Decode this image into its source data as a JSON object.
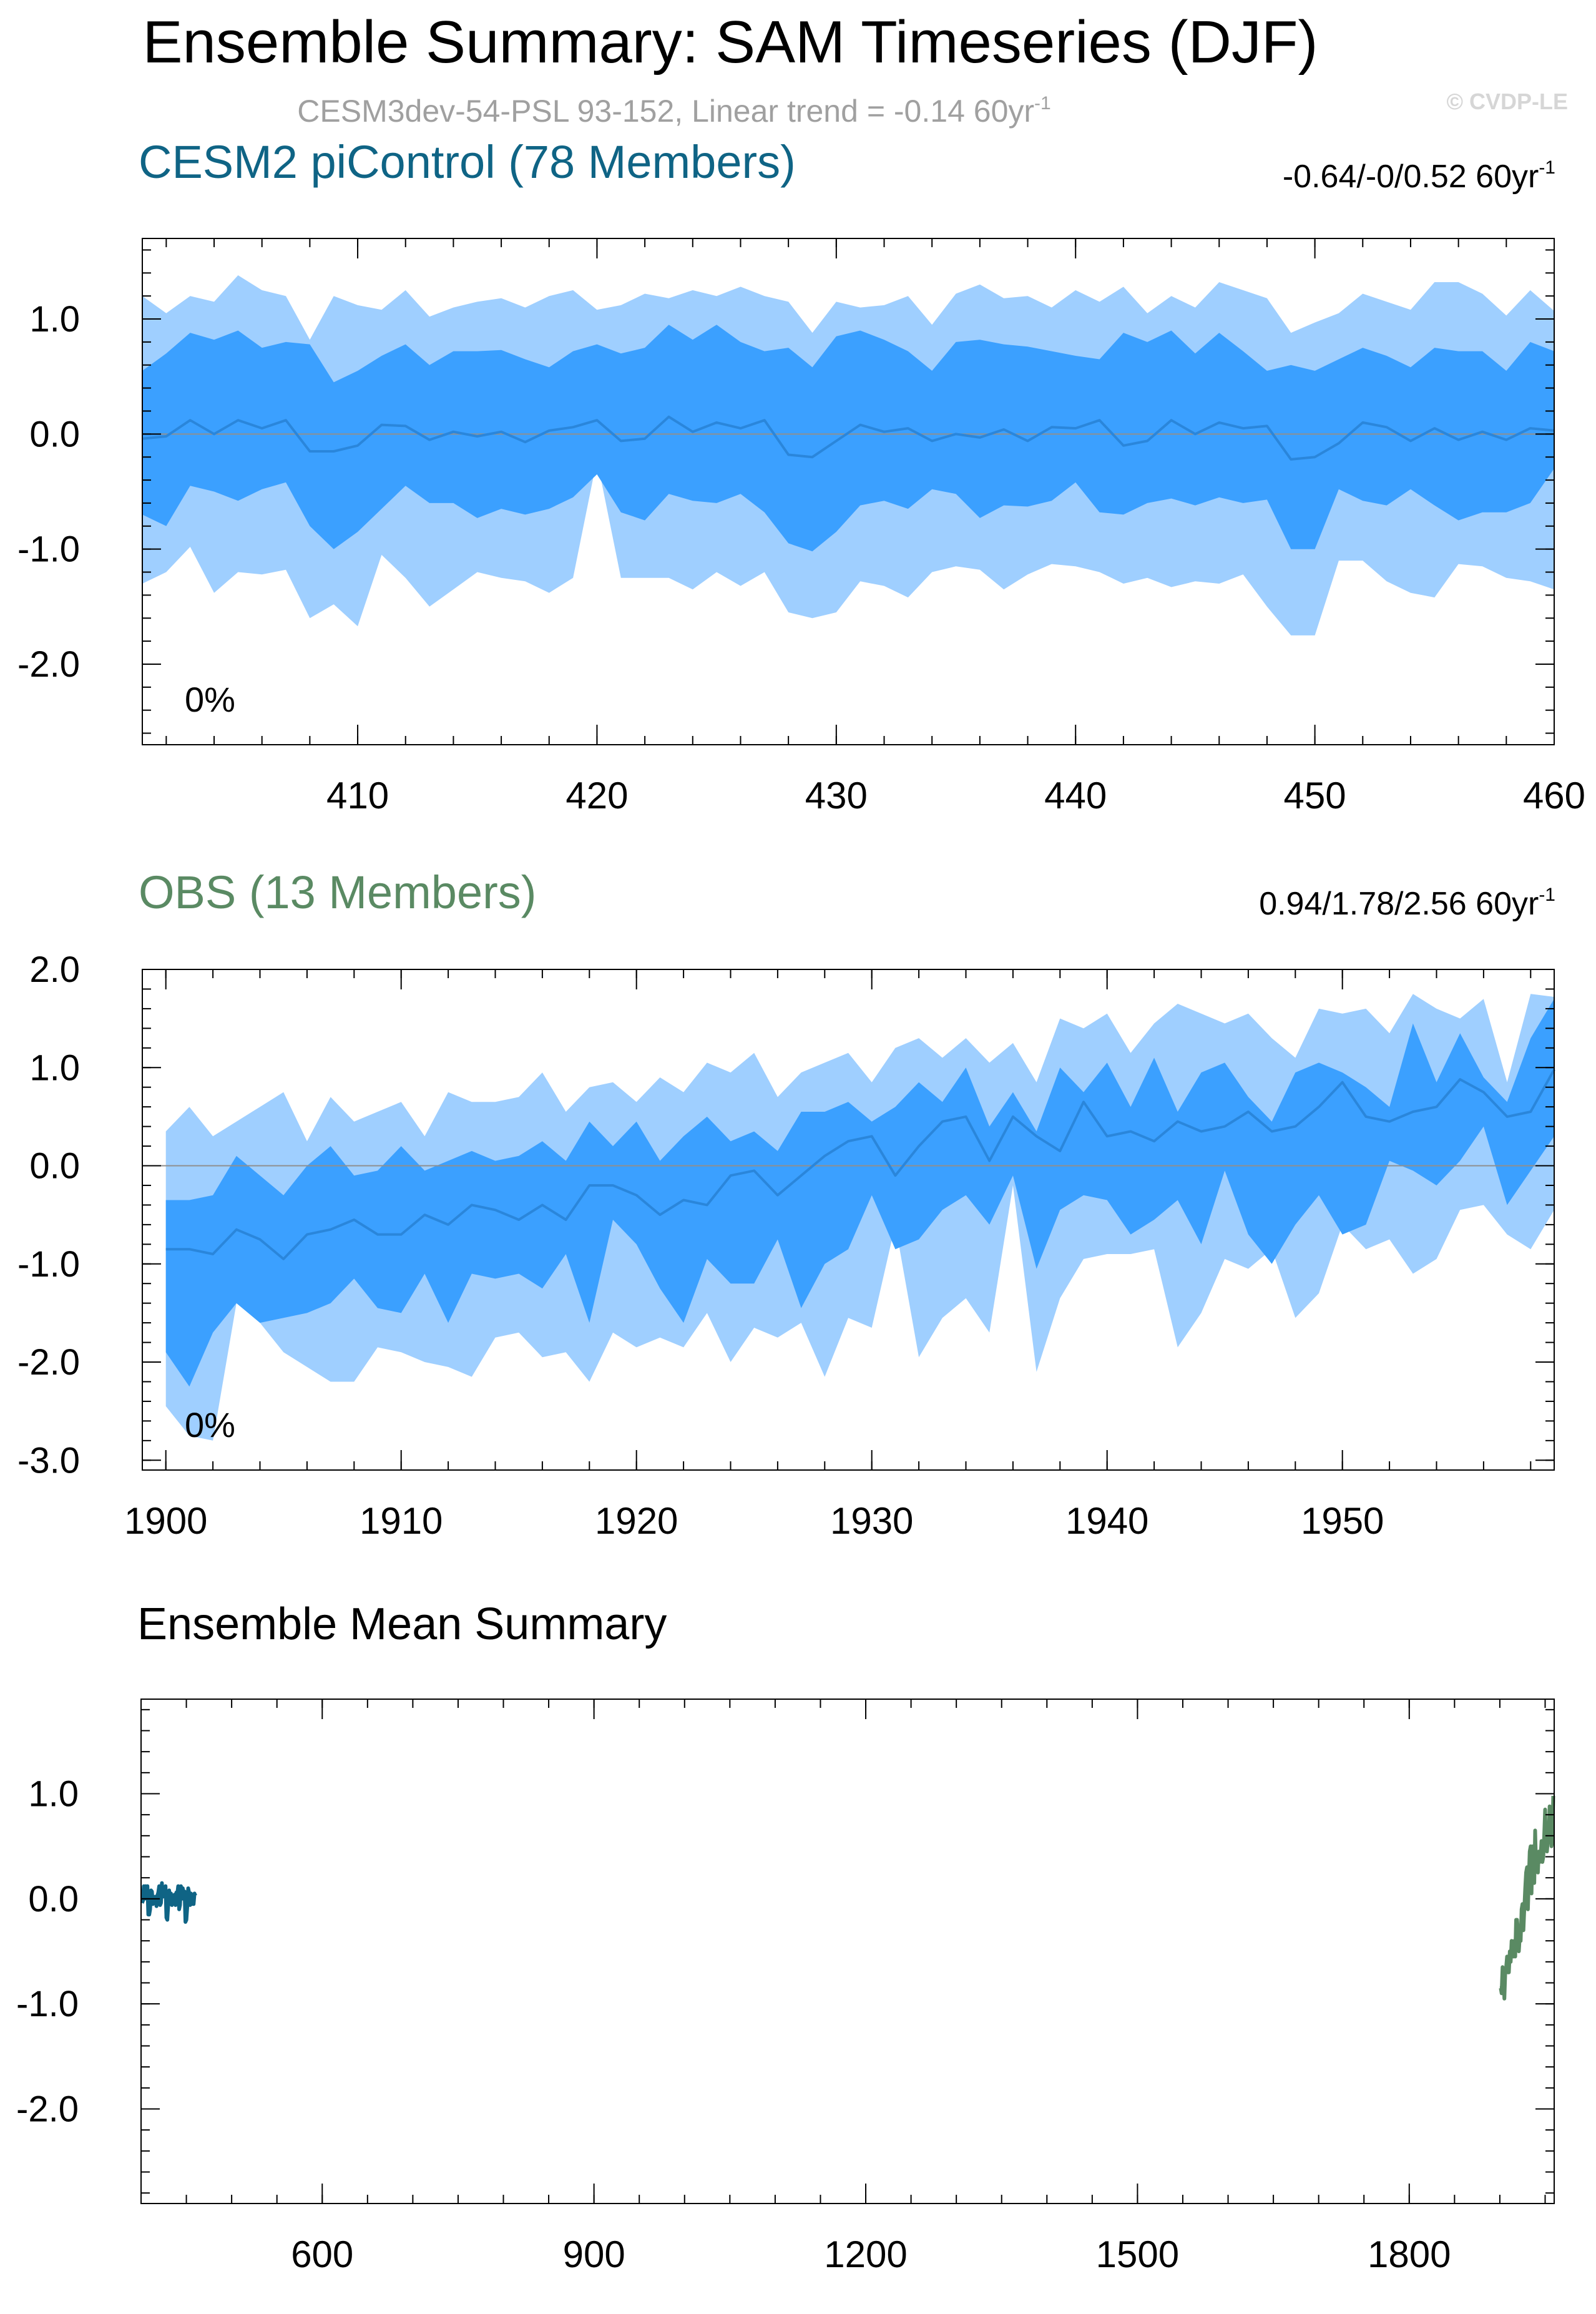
{
  "title": "Ensemble Summary: SAM Timeseries (DJF)",
  "subtitle": {
    "main": "CESM3dev-54-PSL 93-152, Linear trend = -0.14 60yr",
    "exp": "-1"
  },
  "watermark": "© CVDP-LE",
  "colors": {
    "outer_band": "#9fcfff",
    "inner_band": "#3ba0ff",
    "mean_line": "#2a86db",
    "panel1_title": "#0f6485",
    "panel2_title": "#5a8a63",
    "zero_line": "#8f8f8f"
  },
  "chart_data": [
    {
      "type": "area",
      "title": "CESM2 piControl (78 Members)",
      "trend_label": {
        "main": "-0.64/-0/0.52 60yr",
        "exp": "-1"
      },
      "percent_label": "0%",
      "xlim": [
        401,
        460
      ],
      "ylim": [
        -2.7,
        1.7
      ],
      "x_ticks": [
        410,
        420,
        430,
        440,
        450,
        460
      ],
      "y_ticks": [
        1.0,
        0.0,
        -1.0,
        -2.0
      ],
      "y_tick_labels": [
        "1.0",
        "0.0",
        "-1.0",
        "-2.0"
      ],
      "x_start": 401,
      "series": [
        {
          "role": "band_outer_upper",
          "values": [
            1.2,
            1.05,
            1.2,
            1.15,
            1.38,
            1.25,
            1.2,
            0.82,
            1.2,
            1.12,
            1.08,
            1.25,
            1.02,
            1.1,
            1.15,
            1.18,
            1.1,
            1.2,
            1.25,
            1.08,
            1.12,
            1.22,
            1.18,
            1.25,
            1.2,
            1.28,
            1.2,
            1.15,
            0.88,
            1.15,
            1.1,
            1.12,
            1.2,
            0.95,
            1.22,
            1.3,
            1.18,
            1.2,
            1.1,
            1.25,
            1.15,
            1.28,
            1.05,
            1.2,
            1.1,
            1.32,
            1.25,
            1.18,
            0.88,
            0.97,
            1.05,
            1.22,
            1.15,
            1.08,
            1.32,
            1.32,
            1.22,
            1.03,
            1.25,
            1.07
          ]
        },
        {
          "role": "band_inner_upper",
          "values": [
            0.55,
            0.7,
            0.88,
            0.82,
            0.9,
            0.75,
            0.8,
            0.78,
            0.45,
            0.55,
            0.68,
            0.78,
            0.6,
            0.72,
            0.72,
            0.73,
            0.65,
            0.58,
            0.72,
            0.78,
            0.7,
            0.75,
            0.95,
            0.82,
            0.95,
            0.8,
            0.72,
            0.75,
            0.58,
            0.85,
            0.9,
            0.82,
            0.72,
            0.55,
            0.8,
            0.82,
            0.78,
            0.76,
            0.72,
            0.68,
            0.65,
            0.88,
            0.8,
            0.9,
            0.7,
            0.88,
            0.72,
            0.55,
            0.6,
            0.55,
            0.65,
            0.75,
            0.68,
            0.58,
            0.75,
            0.72,
            0.72,
            0.55,
            0.8,
            0.72
          ]
        },
        {
          "role": "ensemble_mean",
          "values": [
            -0.04,
            -0.02,
            0.12,
            0.0,
            0.12,
            0.05,
            0.12,
            -0.15,
            -0.15,
            -0.1,
            0.08,
            0.07,
            -0.05,
            0.02,
            -0.02,
            0.02,
            -0.07,
            0.03,
            0.06,
            0.12,
            -0.06,
            -0.04,
            0.15,
            0.02,
            0.1,
            0.05,
            0.12,
            -0.18,
            -0.2,
            -0.06,
            0.08,
            0.02,
            0.05,
            -0.06,
            0.0,
            -0.03,
            0.04,
            -0.06,
            0.06,
            0.05,
            0.12,
            -0.1,
            -0.06,
            0.12,
            0.0,
            0.1,
            0.05,
            0.07,
            -0.22,
            -0.2,
            -0.08,
            0.1,
            0.06,
            -0.06,
            0.05,
            -0.05,
            0.02,
            -0.05,
            0.05,
            0.03
          ]
        },
        {
          "role": "band_inner_lower",
          "values": [
            -0.7,
            -0.8,
            -0.45,
            -0.5,
            -0.58,
            -0.48,
            -0.42,
            -0.8,
            -1.0,
            -0.85,
            -0.65,
            -0.45,
            -0.6,
            -0.6,
            -0.73,
            -0.65,
            -0.7,
            -0.65,
            -0.55,
            -0.35,
            -0.68,
            -0.75,
            -0.52,
            -0.58,
            -0.6,
            -0.52,
            -0.68,
            -0.95,
            -1.02,
            -0.85,
            -0.62,
            -0.58,
            -0.65,
            -0.48,
            -0.52,
            -0.73,
            -0.62,
            -0.63,
            -0.58,
            -0.42,
            -0.68,
            -0.7,
            -0.6,
            -0.56,
            -0.62,
            -0.55,
            -0.6,
            -0.57,
            -1.0,
            -1.0,
            -0.48,
            -0.58,
            -0.62,
            -0.48,
            -0.62,
            -0.75,
            -0.68,
            -0.68,
            -0.6,
            -0.3
          ]
        },
        {
          "role": "band_outer_lower",
          "values": [
            -1.3,
            -1.2,
            -0.98,
            -1.38,
            -1.2,
            -1.22,
            -1.18,
            -1.6,
            -1.48,
            -1.67,
            -1.05,
            -1.25,
            -1.5,
            -1.35,
            -1.2,
            -1.25,
            -1.28,
            -1.38,
            -1.25,
            -0.22,
            -1.25,
            -1.25,
            -1.25,
            -1.35,
            -1.2,
            -1.32,
            -1.2,
            -1.55,
            -1.6,
            -1.55,
            -1.28,
            -1.32,
            -1.42,
            -1.2,
            -1.15,
            -1.18,
            -1.35,
            -1.22,
            -1.13,
            -1.15,
            -1.2,
            -1.3,
            -1.25,
            -1.33,
            -1.28,
            -1.3,
            -1.22,
            -1.5,
            -1.75,
            -1.75,
            -1.1,
            -1.1,
            -1.28,
            -1.38,
            -1.42,
            -1.13,
            -1.15,
            -1.25,
            -1.28,
            -1.35
          ]
        }
      ]
    },
    {
      "type": "area",
      "title": "OBS (13 Members)",
      "trend_label": {
        "main": "0.94/1.78/2.56 60yr",
        "exp": "-1"
      },
      "percent_label": "0%",
      "xlim": [
        1899,
        1959
      ],
      "ylim": [
        -3.1,
        2.0
      ],
      "x_ticks": [
        1900,
        1910,
        1920,
        1930,
        1940,
        1950
      ],
      "y_ticks": [
        2.0,
        1.0,
        0.0,
        -1.0,
        -2.0,
        -3.0
      ],
      "y_tick_labels": [
        "2.0",
        "1.0",
        "0.0",
        "-1.0",
        "-2.0",
        "-3.0"
      ],
      "x_start": 1900,
      "series": [
        {
          "role": "band_outer_upper",
          "values": [
            0.35,
            0.6,
            0.3,
            0.45,
            0.6,
            0.75,
            0.25,
            0.7,
            0.45,
            0.55,
            0.65,
            0.3,
            0.75,
            0.65,
            0.65,
            0.7,
            0.95,
            0.55,
            0.8,
            0.85,
            0.65,
            0.9,
            0.75,
            1.05,
            0.95,
            1.15,
            0.7,
            0.95,
            1.05,
            1.15,
            0.85,
            1.2,
            1.3,
            1.1,
            1.3,
            1.05,
            1.25,
            0.85,
            1.5,
            1.4,
            1.55,
            1.15,
            1.45,
            1.65,
            1.55,
            1.45,
            1.55,
            1.3,
            1.1,
            1.6,
            1.55,
            1.6,
            1.35,
            1.75,
            1.6,
            1.5,
            1.7,
            0.85,
            1.75,
            1.72
          ]
        },
        {
          "role": "band_inner_upper",
          "values": [
            -0.35,
            -0.35,
            -0.3,
            0.1,
            -0.1,
            -0.3,
            0.0,
            0.2,
            -0.1,
            -0.05,
            0.2,
            -0.05,
            0.05,
            0.15,
            0.05,
            0.1,
            0.25,
            0.05,
            0.45,
            0.2,
            0.45,
            0.05,
            0.3,
            0.5,
            0.25,
            0.35,
            0.15,
            0.55,
            0.55,
            0.65,
            0.45,
            0.6,
            0.85,
            0.65,
            1.0,
            0.4,
            0.75,
            0.35,
            1.0,
            0.75,
            1.05,
            0.6,
            1.1,
            0.55,
            0.95,
            1.05,
            0.7,
            0.45,
            0.95,
            1.05,
            0.95,
            0.8,
            0.6,
            1.45,
            0.85,
            1.35,
            0.9,
            0.65,
            1.3,
            1.7
          ]
        },
        {
          "role": "ensemble_mean",
          "values": [
            -0.85,
            -0.85,
            -0.9,
            -0.65,
            -0.75,
            -0.95,
            -0.7,
            -0.65,
            -0.55,
            -0.7,
            -0.7,
            -0.5,
            -0.6,
            -0.4,
            -0.45,
            -0.55,
            -0.4,
            -0.55,
            -0.2,
            -0.2,
            -0.3,
            -0.5,
            -0.35,
            -0.4,
            -0.1,
            -0.05,
            -0.3,
            -0.1,
            0.1,
            0.25,
            0.3,
            -0.1,
            0.2,
            0.45,
            0.5,
            0.05,
            0.5,
            0.3,
            0.15,
            0.65,
            0.3,
            0.35,
            0.25,
            0.45,
            0.35,
            0.4,
            0.55,
            0.35,
            0.4,
            0.6,
            0.85,
            0.5,
            0.45,
            0.55,
            0.6,
            0.88,
            0.75,
            0.5,
            0.55,
            0.98
          ]
        },
        {
          "role": "band_inner_lower",
          "values": [
            -1.9,
            -2.25,
            -1.7,
            -1.4,
            -1.6,
            -1.55,
            -1.5,
            -1.4,
            -1.15,
            -1.45,
            -1.5,
            -1.1,
            -1.6,
            -1.1,
            -1.15,
            -1.1,
            -1.25,
            -0.9,
            -1.6,
            -0.55,
            -0.8,
            -1.25,
            -1.6,
            -0.95,
            -1.2,
            -1.2,
            -0.75,
            -1.45,
            -1.0,
            -0.85,
            -0.3,
            -0.85,
            -0.75,
            -0.45,
            -0.3,
            -0.6,
            -0.1,
            -1.05,
            -0.45,
            -0.3,
            -0.35,
            -0.7,
            -0.55,
            -0.35,
            -0.8,
            -0.05,
            -0.7,
            -1.0,
            -0.6,
            -0.3,
            -0.7,
            -0.6,
            0.05,
            -0.05,
            -0.2,
            0.05,
            0.4,
            -0.4,
            -0.05,
            0.3
          ]
        },
        {
          "role": "band_outer_lower",
          "values": [
            -2.45,
            -2.75,
            -2.8,
            -1.4,
            -1.6,
            -1.9,
            -2.05,
            -2.2,
            -2.2,
            -1.85,
            -1.9,
            -2.0,
            -2.05,
            -2.15,
            -1.75,
            -1.7,
            -1.95,
            -1.9,
            -2.2,
            -1.7,
            -1.85,
            -1.75,
            -1.85,
            -1.5,
            -2.0,
            -1.65,
            -1.75,
            -1.6,
            -2.15,
            -1.55,
            -1.65,
            -0.6,
            -1.95,
            -1.55,
            -1.35,
            -1.7,
            -0.2,
            -2.1,
            -1.35,
            -0.95,
            -0.9,
            -0.9,
            -0.85,
            -1.85,
            -1.5,
            -0.95,
            -1.05,
            -0.85,
            -1.55,
            -1.3,
            -0.6,
            -0.85,
            -0.75,
            -1.1,
            -0.95,
            -0.45,
            -0.4,
            -0.7,
            -0.85,
            -0.45
          ]
        }
      ]
    },
    {
      "type": "line",
      "title": "Ensemble Mean Summary",
      "xlim": [
        400,
        1960
      ],
      "ylim": [
        -2.9,
        1.9
      ],
      "x_ticks": [
        600,
        900,
        1200,
        1500,
        1800
      ],
      "y_ticks": [
        1.0,
        0.0,
        -1.0,
        -2.0
      ],
      "y_tick_labels": [
        "1.0",
        "0.0",
        "-1.0",
        "-2.0"
      ],
      "series_refs": [
        {
          "source_panel": 0,
          "color": "#0f6485"
        },
        {
          "source_panel": 1,
          "color": "#5a8a63"
        }
      ]
    }
  ]
}
